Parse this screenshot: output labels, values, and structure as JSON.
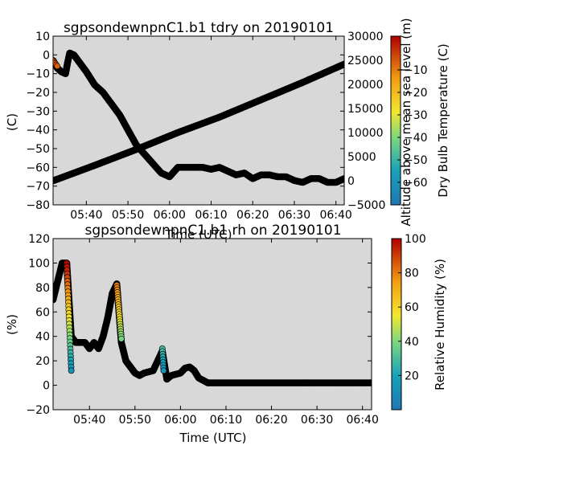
{
  "chart_data": [
    {
      "type": "scatter",
      "title": "sgpsondewnpnC1.b1 tdry on 20190101",
      "xlabel": "Time (UTC)",
      "ylabel": "(C)",
      "secondary_ylabel": "Altitude above mean sea level (m)",
      "colorbar_label": "Dry Bulb Temperature (C)",
      "xlim": [
        "05:32",
        "06:42"
      ],
      "ylim": [
        -80,
        10
      ],
      "secondary_ylim": [
        -5000,
        30000
      ],
      "colorbar_range": [
        -70,
        5
      ],
      "xticks": [
        "05:40",
        "05:50",
        "06:00",
        "06:10",
        "06:20",
        "06:30",
        "06:40"
      ],
      "yticks": [
        10,
        0,
        -10,
        -20,
        -30,
        -40,
        -50,
        -60,
        -70,
        -80
      ],
      "secondary_yticks": [
        30000,
        25000,
        20000,
        15000,
        10000,
        5000,
        0,
        -5000
      ],
      "colorbar_ticks": [
        -60,
        -50,
        -40,
        -30,
        -20,
        -10
      ],
      "grid": false,
      "series": [
        {
          "x": [
            "05:32",
            "05:33",
            "05:34",
            "05:35",
            "05:35.5",
            "05:36",
            "05:37",
            "05:38",
            "05:40",
            "05:42",
            "05:44",
            "05:46",
            "05:48",
            "05:50",
            "05:52",
            "05:54",
            "05:56",
            "05:58",
            "06:00",
            "06:02",
            "06:04",
            "06:06",
            "06:08",
            "06:10",
            "06:12",
            "06:14",
            "06:16",
            "06:18",
            "06:20",
            "06:22",
            "06:24",
            "06:26",
            "06:28",
            "06:30",
            "06:32",
            "06:34",
            "06:36",
            "06:38",
            "06:40",
            "06:42"
          ],
          "values": [
            -3,
            -7,
            -9,
            -10,
            -4,
            1,
            0,
            -3,
            -9,
            -16,
            -20,
            -26,
            -32,
            -40,
            -48,
            -53,
            -58,
            -63,
            -65,
            -60,
            -60,
            -60,
            -60,
            -61,
            -60,
            -62,
            -64,
            -63,
            -66,
            -64,
            -64,
            -65,
            -65,
            -67,
            -68,
            -66,
            -66,
            -68,
            -68,
            -66
          ]
        },
        {
          "axis": "secondary",
          "x": [
            "05:32",
            "05:42",
            "05:52",
            "06:02",
            "06:12",
            "06:22",
            "06:32",
            "06:42"
          ],
          "values": [
            0,
            3200,
            6500,
            10000,
            13200,
            16800,
            20400,
            24200
          ]
        }
      ]
    },
    {
      "type": "scatter",
      "title": "sgpsondewnpnC1.b1 rh on 20190101",
      "xlabel": "Time (UTC)",
      "ylabel": "(%)",
      "colorbar_label": "Relative Humidity (%)",
      "xlim": [
        "05:32",
        "06:42"
      ],
      "ylim": [
        -20,
        120
      ],
      "colorbar_range": [
        0,
        100
      ],
      "xticks": [
        "05:40",
        "05:50",
        "06:00",
        "06:10",
        "06:20",
        "06:30",
        "06:40"
      ],
      "yticks": [
        120,
        100,
        80,
        60,
        40,
        20,
        0,
        -20
      ],
      "colorbar_ticks": [
        100,
        80,
        60,
        40,
        20
      ],
      "grid": false,
      "series": [
        {
          "x": [
            "05:32",
            "05:33",
            "05:34",
            "05:35",
            "05:36",
            "05:37",
            "05:38",
            "05:39",
            "05:40",
            "05:41",
            "05:42",
            "05:43",
            "05:44",
            "05:45",
            "05:46",
            "05:47",
            "05:48",
            "05:49",
            "05:50",
            "05:51",
            "05:52",
            "05:54",
            "05:56",
            "05:57",
            "05:58",
            "06:00",
            "06:01",
            "06:02",
            "06:03",
            "06:04",
            "06:06",
            "06:10",
            "06:20",
            "06:30",
            "06:42"
          ],
          "values": [
            70,
            85,
            100,
            100,
            40,
            35,
            35,
            35,
            30,
            35,
            30,
            40,
            55,
            75,
            83,
            35,
            20,
            15,
            10,
            8,
            10,
            12,
            28,
            5,
            8,
            10,
            14,
            15,
            12,
            6,
            2,
            2,
            2,
            2,
            2
          ]
        }
      ]
    }
  ]
}
